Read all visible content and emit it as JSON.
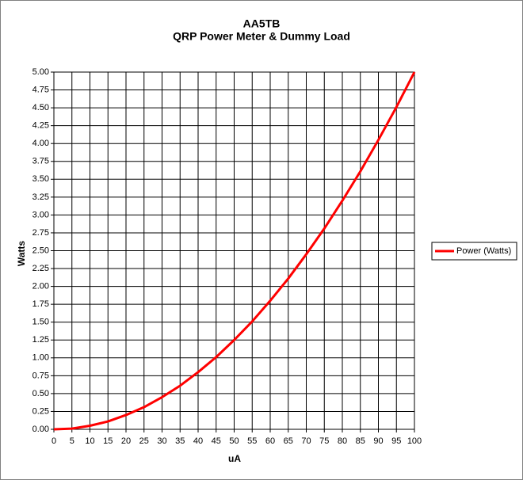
{
  "chart_data": {
    "type": "line",
    "title": "AA5TB",
    "subtitle": "QRP Power Meter & Dummy Load",
    "xlabel": "uA",
    "ylabel": "Watts",
    "x": [
      0,
      5,
      10,
      15,
      20,
      25,
      30,
      35,
      40,
      45,
      50,
      55,
      60,
      65,
      70,
      75,
      80,
      85,
      90,
      95,
      100
    ],
    "series": [
      {
        "name": "Power (Watts)",
        "color": "#ff0000",
        "values": [
          0,
          0.01,
          0.05,
          0.11,
          0.2,
          0.31,
          0.45,
          0.61,
          0.8,
          1.01,
          1.25,
          1.51,
          1.8,
          2.11,
          2.45,
          2.81,
          3.2,
          3.61,
          4.05,
          4.51,
          5
        ]
      }
    ],
    "xlim": [
      0,
      100
    ],
    "xticks": [
      0,
      5,
      10,
      15,
      20,
      25,
      30,
      35,
      40,
      45,
      50,
      55,
      60,
      65,
      70,
      75,
      80,
      85,
      90,
      95,
      100
    ],
    "ylim": [
      0,
      5
    ],
    "yticks": [
      {
        "value": 0,
        "label": "0.00"
      },
      {
        "value": 0.25,
        "label": "0.25"
      },
      {
        "value": 0.5,
        "label": "0.50"
      },
      {
        "value": 0.75,
        "label": "0.75"
      },
      {
        "value": 1,
        "label": "1.00"
      },
      {
        "value": 1.25,
        "label": "1.25"
      },
      {
        "value": 1.5,
        "label": "1.50"
      },
      {
        "value": 1.75,
        "label": "1.75"
      },
      {
        "value": 2,
        "label": "2.00"
      },
      {
        "value": 2.25,
        "label": "2.25"
      },
      {
        "value": 2.5,
        "label": "2.50"
      },
      {
        "value": 2.75,
        "label": "2.75"
      },
      {
        "value": 3,
        "label": "3.00"
      },
      {
        "value": 3.25,
        "label": "3.25"
      },
      {
        "value": 3.5,
        "label": "3.50"
      },
      {
        "value": 3.75,
        "label": "3.75"
      },
      {
        "value": 4,
        "label": "4.00"
      },
      {
        "value": 4.25,
        "label": "4.25"
      },
      {
        "value": 4.5,
        "label": "4.50"
      },
      {
        "value": 4.75,
        "label": "4.75"
      },
      {
        "value": 5,
        "label": "5.00"
      }
    ],
    "grid": true,
    "legend": "right"
  }
}
